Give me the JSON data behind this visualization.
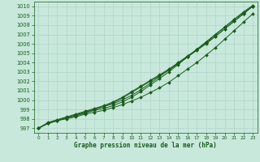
{
  "x": [
    0,
    1,
    2,
    3,
    4,
    5,
    6,
    7,
    8,
    9,
    10,
    11,
    12,
    13,
    14,
    15,
    16,
    17,
    18,
    19,
    20,
    21,
    22,
    23
  ],
  "line1": [
    997.0,
    997.5,
    997.8,
    998.0,
    998.2,
    998.5,
    998.7,
    998.9,
    999.2,
    999.5,
    999.9,
    1000.3,
    1000.8,
    1001.3,
    1001.9,
    1002.6,
    1003.3,
    1004.0,
    1004.8,
    1005.6,
    1006.5,
    1007.4,
    1008.3,
    1009.2
  ],
  "line2": [
    997.0,
    997.6,
    997.9,
    998.2,
    998.5,
    998.8,
    999.1,
    999.4,
    999.8,
    1000.3,
    1000.9,
    1001.5,
    1002.1,
    1002.7,
    1003.3,
    1004.0,
    1004.7,
    1005.4,
    1006.1,
    1006.8,
    1007.6,
    1008.4,
    1009.2,
    1010.0
  ],
  "line3": [
    997.0,
    997.5,
    997.8,
    998.1,
    998.4,
    998.7,
    999.0,
    999.3,
    999.7,
    1000.2,
    1000.8,
    1001.4,
    1002.0,
    1002.6,
    1003.2,
    1003.9,
    1004.6,
    1005.3,
    1006.0,
    1006.8,
    1007.6,
    1008.4,
    1009.2,
    1010.0
  ],
  "line4": [
    997.0,
    997.5,
    997.8,
    998.1,
    998.4,
    998.7,
    999.0,
    999.3,
    999.6,
    1000.0,
    1000.5,
    1001.1,
    1001.8,
    1002.5,
    1003.2,
    1003.9,
    1004.6,
    1005.4,
    1006.2,
    1007.0,
    1007.8,
    1008.6,
    1009.3,
    1010.0
  ],
  "line5": [
    997.0,
    997.5,
    997.8,
    998.1,
    998.3,
    998.6,
    998.9,
    999.1,
    999.4,
    999.8,
    1000.3,
    1000.9,
    1001.6,
    1002.3,
    1003.0,
    1003.8,
    1004.6,
    1005.4,
    1006.2,
    1007.0,
    1007.8,
    1008.6,
    1009.4,
    1010.1
  ],
  "ylim": [
    996.5,
    1010.5
  ],
  "xlim": [
    -0.5,
    23.5
  ],
  "yticks": [
    997,
    998,
    999,
    1000,
    1001,
    1002,
    1003,
    1004,
    1005,
    1006,
    1007,
    1008,
    1009,
    1010
  ],
  "xticks": [
    0,
    1,
    2,
    3,
    4,
    5,
    6,
    7,
    8,
    9,
    10,
    11,
    12,
    13,
    14,
    15,
    16,
    17,
    18,
    19,
    20,
    21,
    22,
    23
  ],
  "line_color": "#1a5c1a",
  "bg_color": "#c8e8dc",
  "grid_color": "#b0d4c8",
  "xlabel": "Graphe pression niveau de la mer (hPa)",
  "xlabel_color": "#1a5c1a",
  "tick_color": "#1a5c1a",
  "marker": "D",
  "markersize": 2.0
}
